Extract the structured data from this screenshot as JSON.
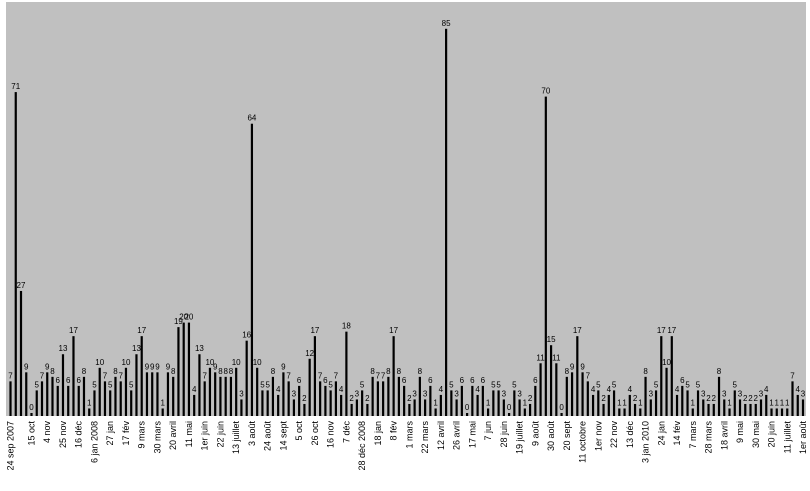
{
  "chart_data": {
    "type": "bar",
    "title": "",
    "xlabel": "",
    "ylabel": "",
    "ylim": [
      0,
      85
    ],
    "grid": false,
    "legend": false,
    "background": "#c0c0c0",
    "bar_color": "#000000",
    "values": [
      7,
      71,
      27,
      9,
      0,
      5,
      7,
      9,
      8,
      6,
      13,
      6,
      17,
      6,
      8,
      1,
      5,
      10,
      7,
      5,
      8,
      7,
      10,
      5,
      13,
      17,
      9,
      9,
      9,
      1,
      9,
      8,
      19,
      20,
      20,
      4,
      13,
      7,
      10,
      9,
      8,
      8,
      8,
      10,
      3,
      16,
      64,
      10,
      5,
      5,
      8,
      4,
      9,
      7,
      3,
      6,
      2,
      12,
      17,
      7,
      6,
      5,
      7,
      4,
      18,
      2,
      3,
      5,
      2,
      8,
      7,
      7,
      8,
      17,
      8,
      6,
      2,
      3,
      8,
      3,
      6,
      1,
      4,
      85,
      5,
      3,
      6,
      0,
      6,
      4,
      6,
      1,
      5,
      5,
      3,
      0,
      5,
      3,
      1,
      2,
      6,
      11,
      70,
      15,
      11,
      0,
      8,
      9,
      17,
      9,
      7,
      4,
      5,
      2,
      4,
      5,
      1,
      1,
      4,
      2,
      1,
      8,
      3,
      5,
      17,
      10,
      17,
      4,
      6,
      5,
      1,
      5,
      3,
      2,
      2,
      8,
      3,
      1,
      5,
      3,
      2,
      2,
      2,
      3,
      4,
      1,
      1,
      1,
      1,
      7,
      4,
      3
    ],
    "tick_labels": [
      {
        "i": 0,
        "text": "24 sep 2007"
      },
      {
        "i": 4,
        "text": "15 oct"
      },
      {
        "i": 7,
        "text": "4 nov"
      },
      {
        "i": 10,
        "text": "25 nov"
      },
      {
        "i": 13,
        "text": "16 déc"
      },
      {
        "i": 16,
        "text": "6 jan 2008"
      },
      {
        "i": 19,
        "text": "27 jan"
      },
      {
        "i": 22,
        "text": "17 fév"
      },
      {
        "i": 25,
        "text": "9 mars"
      },
      {
        "i": 28,
        "text": "30 mars"
      },
      {
        "i": 31,
        "text": "20 avril"
      },
      {
        "i": 34,
        "text": "11 mai"
      },
      {
        "i": 37,
        "text": "1er juin"
      },
      {
        "i": 40,
        "text": "22 juin"
      },
      {
        "i": 43,
        "text": "13 juillet"
      },
      {
        "i": 46,
        "text": "3 août"
      },
      {
        "i": 49,
        "text": "24 août"
      },
      {
        "i": 52,
        "text": "14 sept"
      },
      {
        "i": 55,
        "text": "5 oct"
      },
      {
        "i": 58,
        "text": "26 oct"
      },
      {
        "i": 61,
        "text": "16 nov"
      },
      {
        "i": 64,
        "text": "7 déc"
      },
      {
        "i": 67,
        "text": "28 déc 2008"
      },
      {
        "i": 70,
        "text": "18 jan"
      },
      {
        "i": 73,
        "text": "8 fév"
      },
      {
        "i": 76,
        "text": "1 mars"
      },
      {
        "i": 79,
        "text": "22 mars"
      },
      {
        "i": 82,
        "text": "12 avril"
      },
      {
        "i": 85,
        "text": "26 avril"
      },
      {
        "i": 88,
        "text": "17 mai"
      },
      {
        "i": 91,
        "text": "7 jun"
      },
      {
        "i": 94,
        "text": "28 juin"
      },
      {
        "i": 97,
        "text": "19 juillet"
      },
      {
        "i": 100,
        "text": "9 août"
      },
      {
        "i": 103,
        "text": "30 août"
      },
      {
        "i": 106,
        "text": "20 sept"
      },
      {
        "i": 109,
        "text": "11 octobre"
      },
      {
        "i": 112,
        "text": "1er nov"
      },
      {
        "i": 115,
        "text": "22 nov"
      },
      {
        "i": 118,
        "text": "13 déc"
      },
      {
        "i": 121,
        "text": "3 jan 2010"
      },
      {
        "i": 124,
        "text": "24 jan"
      },
      {
        "i": 127,
        "text": "14 fév"
      },
      {
        "i": 130,
        "text": "7 mars"
      },
      {
        "i": 133,
        "text": "28 mars"
      },
      {
        "i": 136,
        "text": "18 avril"
      },
      {
        "i": 139,
        "text": "9 mai"
      },
      {
        "i": 142,
        "text": "30 mai"
      },
      {
        "i": 145,
        "text": "20 juin"
      },
      {
        "i": 148,
        "text": "11 juillet"
      },
      {
        "i": 151,
        "text": "1er août"
      }
    ]
  }
}
